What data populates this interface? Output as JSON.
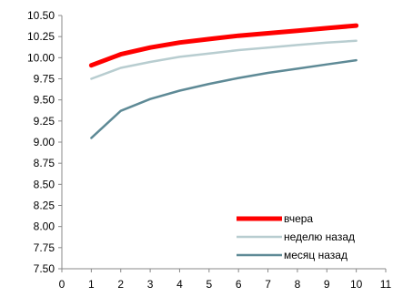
{
  "chart_data": {
    "type": "line",
    "title": "",
    "xlabel": "",
    "ylabel": "",
    "xlim": [
      0,
      11
    ],
    "ylim": [
      7.5,
      10.5
    ],
    "x_ticks": [
      "0",
      "1",
      "2",
      "3",
      "4",
      "5",
      "6",
      "7",
      "8",
      "9",
      "10",
      "11"
    ],
    "y_ticks": [
      "10.50",
      "10.25",
      "10.00",
      "9.75",
      "9.50",
      "9.25",
      "9.00",
      "8.75",
      "8.50",
      "8.25",
      "8.00",
      "7.75",
      "7.50"
    ],
    "grid": false,
    "legend_position": "bottom-right",
    "series": [
      {
        "name": "вчера",
        "color": "#ff0000",
        "x": [
          1,
          2,
          3,
          4,
          5,
          6,
          7,
          8,
          9,
          10
        ],
        "values": [
          9.91,
          10.04,
          10.12,
          10.18,
          10.22,
          10.26,
          10.29,
          10.32,
          10.35,
          10.38
        ]
      },
      {
        "name": "неделю назад",
        "color": "#b8cdd0",
        "x": [
          1,
          2,
          3,
          4,
          5,
          6,
          7,
          8,
          9,
          10
        ],
        "values": [
          9.75,
          9.88,
          9.95,
          10.01,
          10.05,
          10.09,
          10.12,
          10.15,
          10.18,
          10.2
        ]
      },
      {
        "name": "месяц назад",
        "color": "#5e8a96",
        "x": [
          1,
          2,
          3,
          4,
          5,
          6,
          7,
          8,
          9,
          10
        ],
        "values": [
          9.05,
          9.37,
          9.51,
          9.61,
          9.69,
          9.76,
          9.82,
          9.87,
          9.92,
          9.97
        ]
      }
    ]
  }
}
